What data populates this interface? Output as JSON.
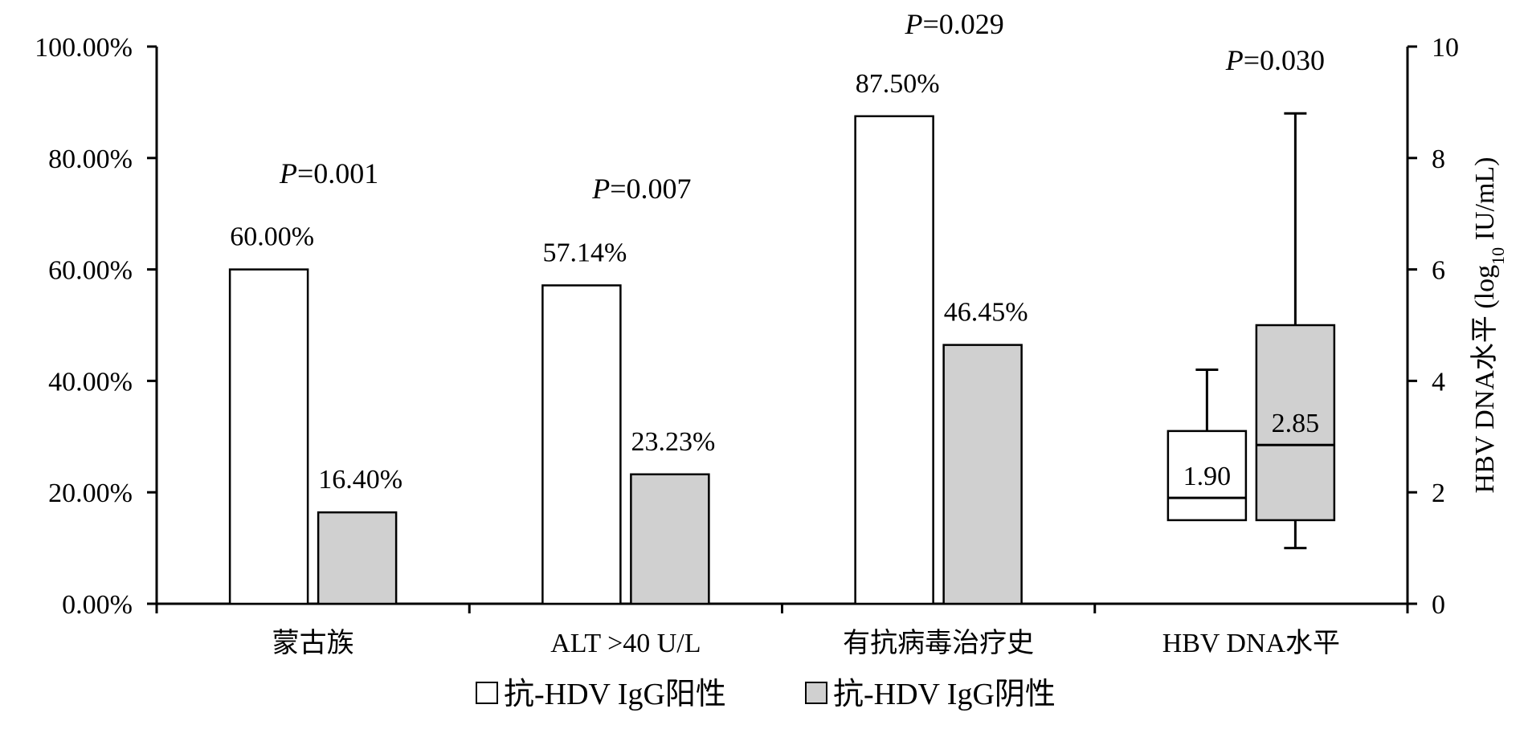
{
  "chart_data": {
    "type": "bar",
    "categories": [
      "蒙古族",
      "ALT >40 U/L",
      "有抗病毒治疗史",
      "HBV DNA水平"
    ],
    "series": [
      {
        "name": "抗-HDV IgG阳性",
        "values": [
          60.0,
          57.14,
          87.5,
          null
        ],
        "labels": [
          "60.00%",
          "57.14%",
          "87.50%",
          ""
        ],
        "color": "#ffffff"
      },
      {
        "name": "抗-HDV IgG阴性",
        "values": [
          16.4,
          23.23,
          46.45,
          null
        ],
        "labels": [
          "16.40%",
          "23.23%",
          "46.45%",
          ""
        ],
        "color": "#d0d0d0"
      }
    ],
    "p_values": [
      {
        "label_prefix": "P",
        "label_value": "=0.001"
      },
      {
        "label_prefix": "P",
        "label_value": "=0.007"
      },
      {
        "label_prefix": "P",
        "label_value": "=0.029"
      },
      {
        "label_prefix": "P",
        "label_value": "=0.030"
      }
    ],
    "y_left": {
      "ylim": [
        0,
        100
      ],
      "ticks": [
        0,
        20,
        40,
        60,
        80,
        100
      ],
      "tick_labels": [
        "0.00%",
        "20.00%",
        "40.00%",
        "60.00%",
        "80.00%",
        "100.00%"
      ]
    },
    "y_right": {
      "title_main": "HBV DNA水平 (log",
      "title_sub": "10",
      "title_end": " IU/mL)",
      "ylim": [
        0,
        10
      ],
      "ticks": [
        0,
        2,
        4,
        6,
        8,
        10
      ],
      "tick_labels": [
        "0",
        "2",
        "4",
        "6",
        "8",
        "10"
      ]
    },
    "boxplots": [
      {
        "series": "抗-HDV IgG阳性",
        "whisker_low": 1.5,
        "q1": 1.5,
        "median": 1.9,
        "q3": 3.1,
        "whisker_high": 4.2,
        "median_label": "1.90",
        "color": "#ffffff"
      },
      {
        "series": "抗-HDV IgG阴性",
        "whisker_low": 1.0,
        "q1": 1.5,
        "median": 2.85,
        "q3": 5.0,
        "whisker_high": 8.8,
        "median_label": "2.85",
        "color": "#d0d0d0"
      }
    ],
    "legend": {
      "placement": "bottom",
      "entries": [
        {
          "label": "抗-HDV IgG阳性",
          "color": "#ffffff"
        },
        {
          "label": "抗-HDV IgG阴性",
          "color": "#d0d0d0"
        }
      ]
    },
    "grid": false
  }
}
